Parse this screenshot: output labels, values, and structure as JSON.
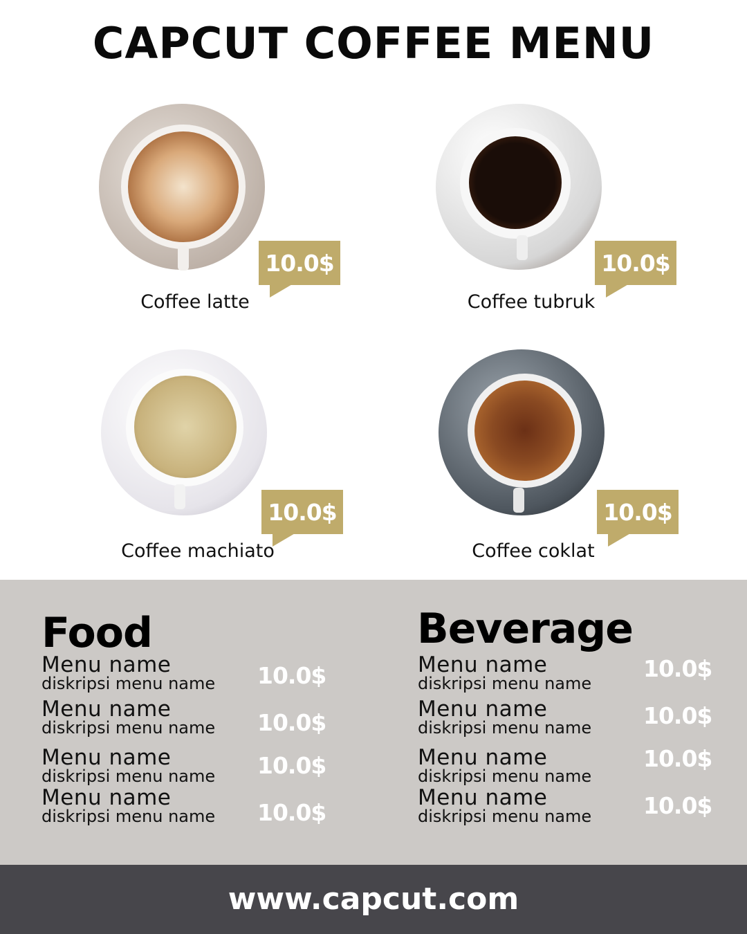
{
  "title": "CAPCUT COFFEE MENU",
  "colors": {
    "accent": "#bfab6b",
    "menu_bg": "#ccc9c6",
    "footer_bg": "#47464b"
  },
  "coffees": [
    {
      "name": "Coffee latte",
      "price": "10.0$"
    },
    {
      "name": "Coffee tubruk",
      "price": "10.0$"
    },
    {
      "name": "Coffee machiato",
      "price": "10.0$"
    },
    {
      "name": "Coffee coklat",
      "price": "10.0$"
    }
  ],
  "food": {
    "heading": "Food",
    "items": [
      {
        "name": "Menu name",
        "desc": "diskripsi menu name",
        "price": "10.0$"
      },
      {
        "name": "Menu name",
        "desc": "diskripsi menu name",
        "price": "10.0$"
      },
      {
        "name": "Menu name",
        "desc": "diskripsi menu name",
        "price": "10.0$"
      },
      {
        "name": "Menu name",
        "desc": "diskripsi menu name",
        "price": "10.0$"
      }
    ]
  },
  "beverage": {
    "heading": "Beverage",
    "items": [
      {
        "name": "Menu name",
        "desc": "diskripsi menu name",
        "price": "10.0$"
      },
      {
        "name": "Menu name",
        "desc": "diskripsi menu name",
        "price": "10.0$"
      },
      {
        "name": "Menu name",
        "desc": "diskripsi menu name",
        "price": "10.0$"
      },
      {
        "name": "Menu name",
        "desc": "diskripsi menu name",
        "price": "10.0$"
      }
    ]
  },
  "footer": {
    "url": "www.capcut.com"
  }
}
